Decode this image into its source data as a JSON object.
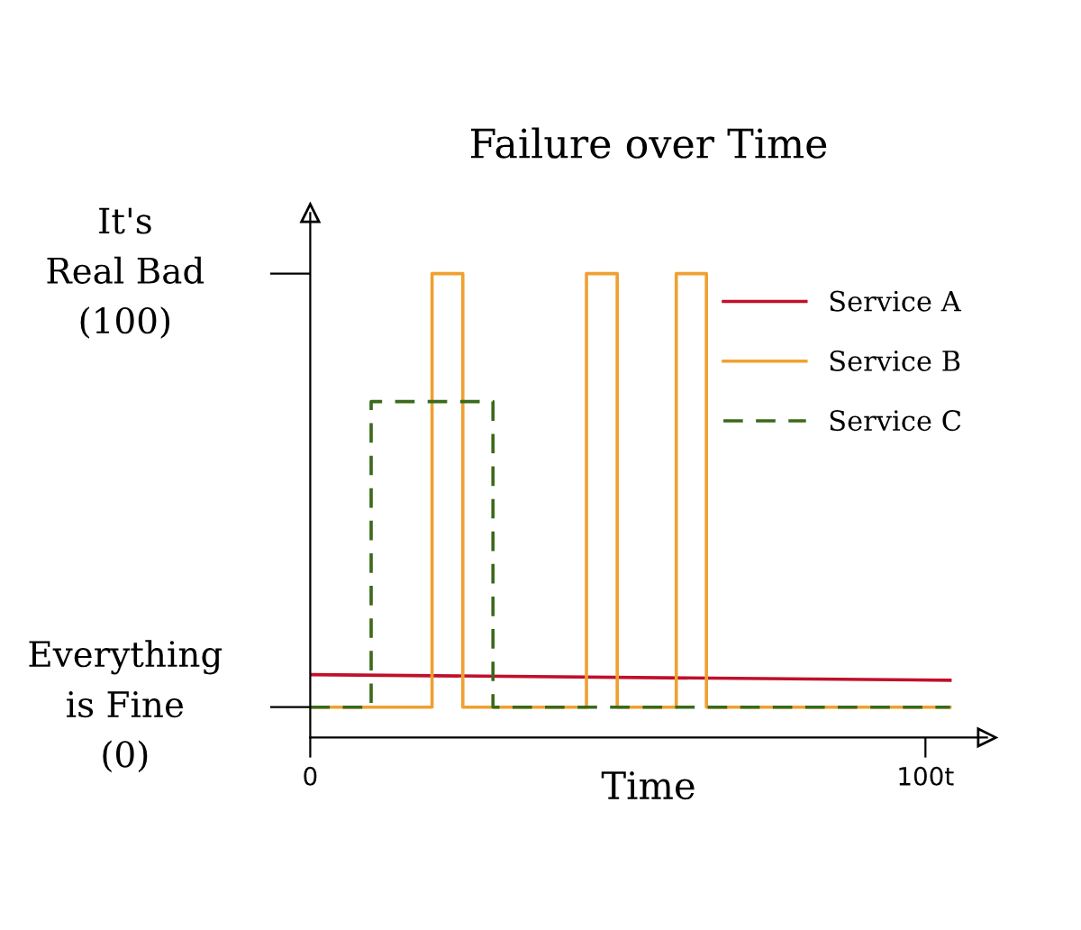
{
  "chart_data": {
    "type": "line",
    "title": "Failure over Time",
    "xlabel": "Time",
    "xlim": [
      0,
      110
    ],
    "ylim": [
      -7,
      114
    ],
    "xticks": [
      0,
      {
        "value": 100,
        "label": "100t"
      }
    ],
    "yticks": [
      {
        "value": 0,
        "label": "Everything\nis Fine\n(0)"
      },
      {
        "value": 100,
        "label": "It's\nReal Bad\n(100)"
      }
    ],
    "grid": false,
    "legend": "top right",
    "series": [
      {
        "name": "Service A",
        "color": "#c0102a",
        "line_style": "solid",
        "x": [
          0,
          104
        ],
        "values": [
          7.5,
          6.2
        ]
      },
      {
        "name": "Service B",
        "color": "#f0a030",
        "line_style": "solid",
        "x": [
          0,
          19.8,
          19.8,
          24.8,
          24.8,
          44.9,
          44.9,
          49.9,
          49.9,
          59.5,
          59.5,
          64.4,
          64.4,
          104
        ],
        "values": [
          0,
          0,
          100,
          100,
          0,
          0,
          100,
          100,
          0,
          0,
          100,
          100,
          0,
          0
        ]
      },
      {
        "name": "Service C",
        "color": "#3a6a1a",
        "line_style": "dashed",
        "x": [
          0,
          9.9,
          9.9,
          29.7,
          29.7,
          104
        ],
        "values": [
          0,
          0,
          70.5,
          70.5,
          0,
          0
        ]
      }
    ]
  }
}
